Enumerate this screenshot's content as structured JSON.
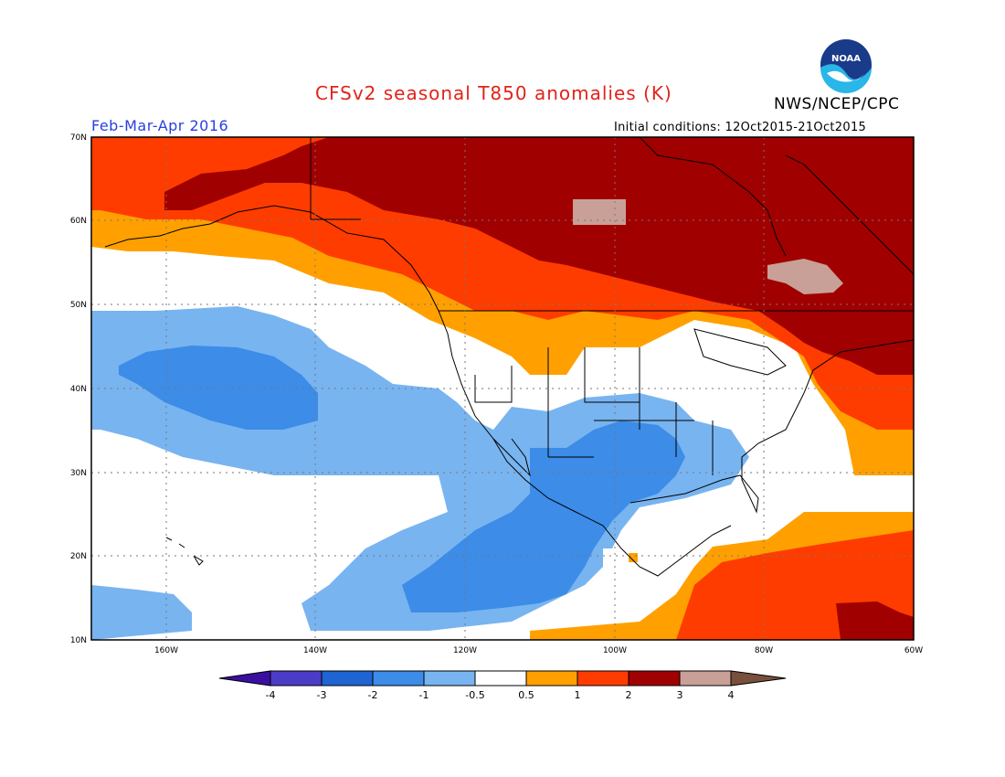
{
  "title": "CFSv2 seasonal T850 anomalies (K)",
  "agency": "NWS/NCEP/CPC",
  "logo_text": "NOAA",
  "period": "Feb-Mar-Apr 2016",
  "initial_conditions": "Initial conditions: 12Oct2015-21Oct2015",
  "lat_labels": [
    "70N",
    "60N",
    "50N",
    "40N",
    "30N",
    "20N",
    "10N"
  ],
  "lon_labels": [
    "160W",
    "140W",
    "120W",
    "100W",
    "80W",
    "60W"
  ],
  "colorbar": {
    "labels": [
      "-4",
      "-3",
      "-2",
      "-1",
      "-0.5",
      "0.5",
      "1",
      "2",
      "3",
      "4"
    ],
    "colors": [
      "#3a0fa0",
      "#4b3cc8",
      "#1e64d2",
      "#3c8ce8",
      "#78b4f0",
      "#ffffff",
      "#ffa000",
      "#ff3c00",
      "#a00000",
      "#c8a098",
      "#78503c"
    ]
  },
  "colors": {
    "title": "#e2231a",
    "period": "#2a40e0",
    "warm_1": "#ffa000",
    "warm_2": "#ff3c00",
    "warm_3": "#a00000",
    "warm_4": "#c8a098",
    "cool_1": "#78b4f0",
    "cool_2": "#3c8ce8"
  }
}
